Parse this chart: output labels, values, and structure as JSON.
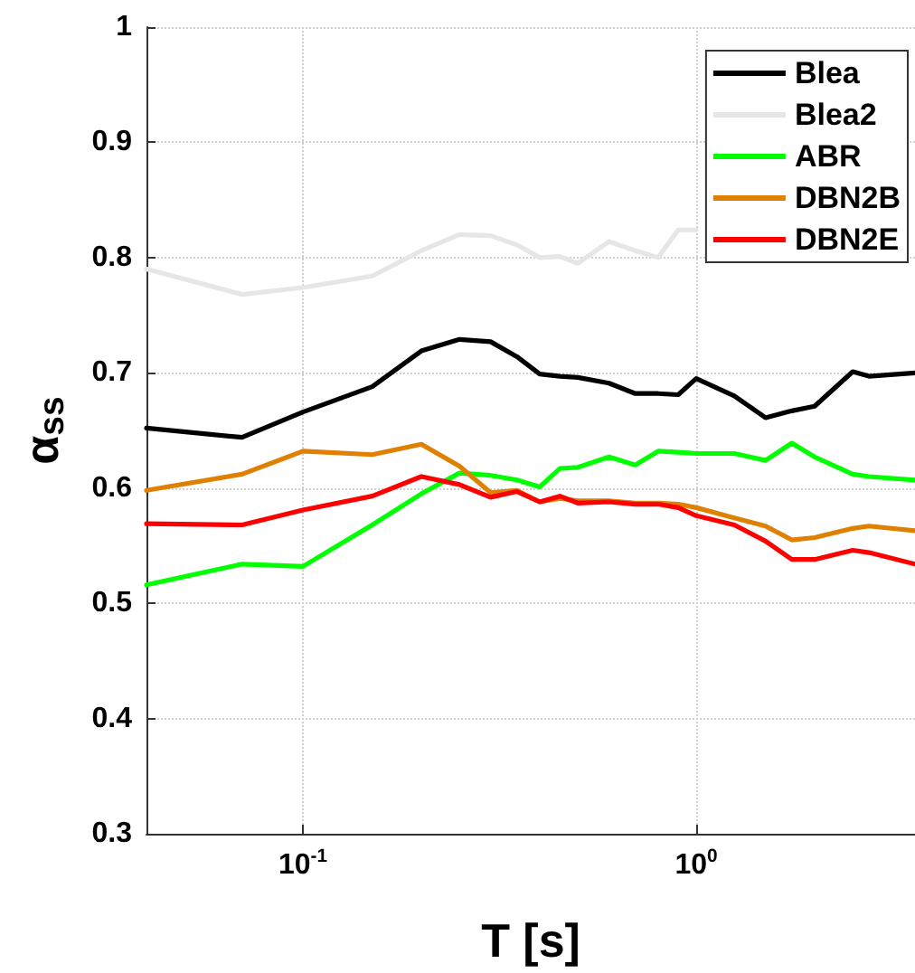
{
  "chart_data": {
    "type": "line",
    "xlabel": "T [s]",
    "ylabel": "α$_{ss}$",
    "x": [
      0.04,
      0.07,
      0.1,
      0.15,
      0.2,
      0.25,
      0.3,
      0.35,
      0.4,
      0.45,
      0.5,
      0.6,
      0.7,
      0.8,
      0.9,
      1.0,
      1.25,
      1.5,
      1.75,
      2.0,
      2.5,
      2.75,
      3.6
    ],
    "series": [
      {
        "name": "Blea",
        "color": "#000000",
        "values": [
          0.652,
          0.644,
          0.666,
          0.688,
          0.719,
          0.729,
          0.727,
          0.714,
          0.699,
          0.697,
          0.696,
          0.691,
          0.682,
          0.682,
          0.681,
          0.695,
          0.68,
          0.661,
          0.667,
          0.671,
          0.701,
          0.697,
          0.7
        ]
      },
      {
        "name": "Blea2",
        "color": "#e6e6e6",
        "values": [
          0.79,
          0.768,
          0.774,
          0.784,
          0.806,
          0.82,
          0.819,
          0.811,
          0.8,
          0.801,
          0.795,
          0.814,
          0.806,
          0.8,
          0.824,
          0.824,
          null,
          null,
          null,
          null,
          null,
          null,
          null
        ]
      },
      {
        "name": "ABR",
        "color": "#00ff00",
        "values": [
          0.516,
          0.534,
          0.532,
          0.568,
          0.595,
          0.613,
          0.611,
          0.607,
          0.601,
          0.617,
          0.618,
          0.627,
          0.62,
          0.632,
          0.631,
          0.63,
          0.63,
          0.624,
          0.639,
          0.627,
          0.612,
          0.61,
          0.607
        ]
      },
      {
        "name": "DBN2B",
        "color": "#e08000",
        "values": [
          0.598,
          0.612,
          0.632,
          0.629,
          0.638,
          0.619,
          0.596,
          0.598,
          0.588,
          0.591,
          0.589,
          0.589,
          0.587,
          0.587,
          0.586,
          0.583,
          0.574,
          0.567,
          0.555,
          0.557,
          0.565,
          0.567,
          0.563
        ]
      },
      {
        "name": "DBN2E",
        "color": "#ff0000",
        "values": [
          0.569,
          0.568,
          0.581,
          0.593,
          0.61,
          0.603,
          0.592,
          0.597,
          0.588,
          0.593,
          0.587,
          0.588,
          0.586,
          0.586,
          0.583,
          0.576,
          0.568,
          0.554,
          0.538,
          0.538,
          0.546,
          0.544,
          0.534
        ]
      }
    ],
    "log": "x",
    "xlim": [
      0.04,
      3.6
    ],
    "xticks": [
      {
        "value": 0.1,
        "label": "10$^{-1}$"
      },
      {
        "value": 1,
        "label": "10$^{0}$"
      }
    ],
    "ylim": [
      0.3,
      1
    ],
    "yticks": [
      0.3,
      0.4,
      0.5,
      0.6,
      0.7,
      0.8,
      0.9,
      1
    ],
    "grid": true,
    "legend": "top right",
    "marker": "none",
    "line_style": "solid"
  }
}
